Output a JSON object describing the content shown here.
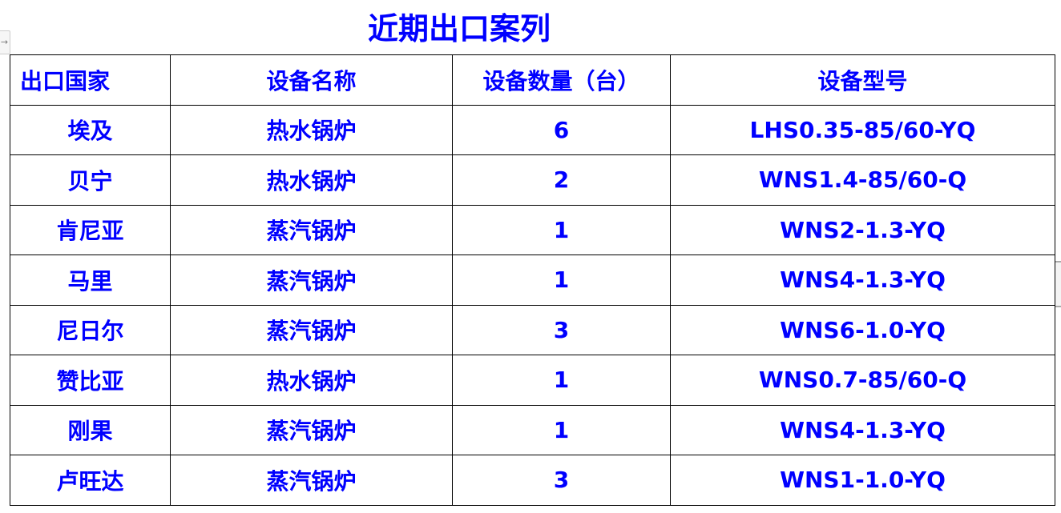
{
  "title": "近期出口案列",
  "table": {
    "headers": [
      "出口国家",
      "设备名称",
      "设备数量（台）",
      "设备型号"
    ],
    "rows": [
      [
        "埃及",
        "热水锅炉",
        "6",
        "LHS0.35-85/60-YQ"
      ],
      [
        "贝宁",
        "热水锅炉",
        "2",
        "WNS1.4-85/60-Q"
      ],
      [
        "肯尼亚",
        "蒸汽锅炉",
        "1",
        "WNS2-1.3-YQ"
      ],
      [
        "马里",
        "蒸汽锅炉",
        "1",
        "WNS4-1.3-YQ"
      ],
      [
        "尼日尔",
        "蒸汽锅炉",
        "3",
        "WNS6-1.0-YQ"
      ],
      [
        "赞比亚",
        "热水锅炉",
        "1",
        "WNS0.7-85/60-Q"
      ],
      [
        "刚果",
        "蒸汽锅炉",
        "1",
        "WNS4-1.3-YQ"
      ],
      [
        "卢旺达",
        "蒸汽锅炉",
        "3",
        "WNS1-1.0-YQ"
      ]
    ]
  },
  "colors": {
    "text": "#0000ff",
    "border": "#000000"
  },
  "icons": {
    "table_handle": "move-arrow-icon"
  }
}
